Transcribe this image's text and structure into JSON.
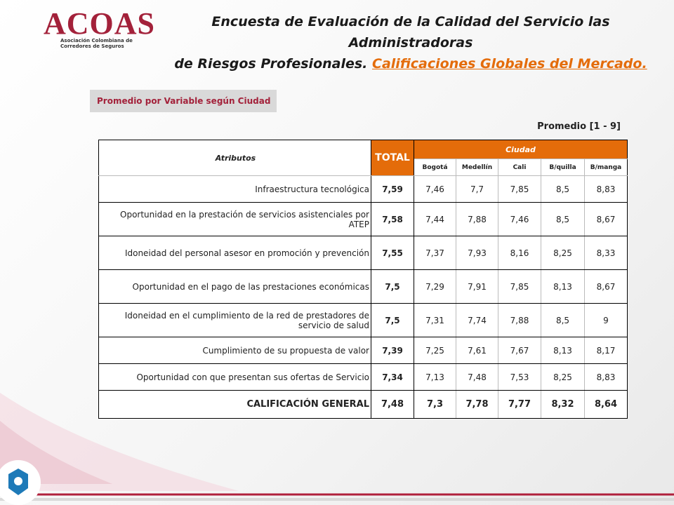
{
  "logo": {
    "name": "ACOAS",
    "subtitle_lines": [
      "Asociación Colombiana de",
      "Corredores de Seguros"
    ]
  },
  "header": {
    "title_line1": "Encuesta de Evaluación de la Calidad del Servicio las Administradoras",
    "title_line2": "de Riesgos Profesionales.",
    "link": "Calificaciones Globales del Mercado."
  },
  "section_label": "Promedio por Variable según Ciudad",
  "scale_note": "Promedio [1 - 9]",
  "table": {
    "columns": {
      "attribute": "Atributos",
      "total": "TOTAL",
      "group": "Ciudad",
      "cities": [
        "Bogotá",
        "Medellín",
        "Cali",
        "B/quilla",
        "B/manga"
      ]
    },
    "rows": [
      [
        "Infraestructura tecnológica",
        "7,59",
        "7,46",
        "7,7",
        "7,85",
        "8,5",
        "8,83"
      ],
      [
        "Oportunidad en la prestación de servicios asistenciales por ATEP",
        "7,58",
        "7,44",
        "7,88",
        "7,46",
        "8,5",
        "8,67"
      ],
      [
        "Idoneidad del personal asesor en promoción y prevención",
        "7,55",
        "7,37",
        "7,93",
        "8,16",
        "8,25",
        "8,33"
      ],
      [
        "Oportunidad en el pago de las prestaciones económicas",
        "7,5",
        "7,29",
        "7,91",
        "7,85",
        "8,13",
        "8,67"
      ],
      [
        "Idoneidad en el cumplimiento de la red de prestadores de servicio de salud",
        "7,5",
        "7,31",
        "7,74",
        "7,88",
        "8,5",
        "9"
      ],
      [
        "Cumplimiento de su propuesta de valor",
        "7,39",
        "7,25",
        "7,61",
        "7,67",
        "8,13",
        "8,17"
      ],
      [
        "Oportunidad con que presentan sus ofertas de Servicio",
        "7,34",
        "7,13",
        "7,48",
        "7,53",
        "8,25",
        "8,83"
      ]
    ],
    "summary_row": [
      "CALIFICACIÓN GENERAL",
      "7,48",
      "7,3",
      "7,78",
      "7,77",
      "8,32",
      "8,64"
    ]
  }
}
